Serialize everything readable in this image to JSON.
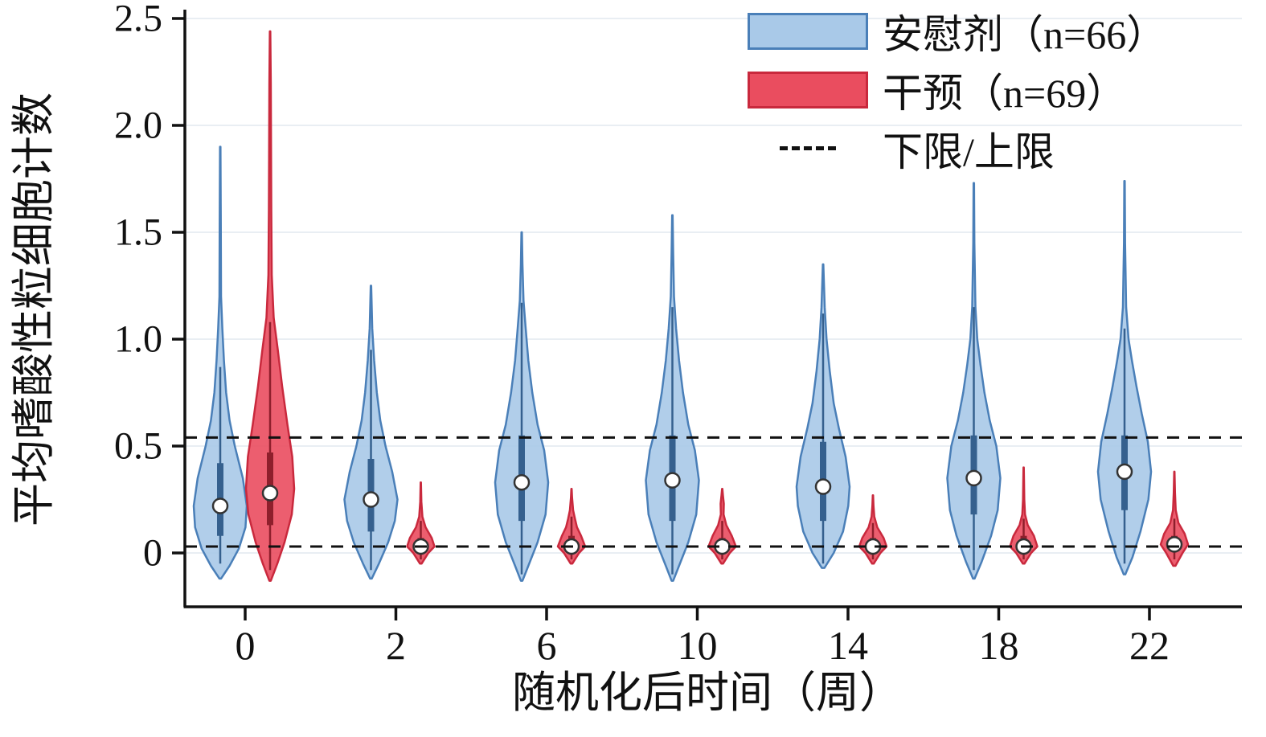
{
  "legend": {
    "items": [
      {
        "label": "安慰剂（n=66）",
        "swatch": "blue-box"
      },
      {
        "label": "干预（n=69）",
        "swatch": "red-box"
      },
      {
        "label": "下限/上限",
        "swatch": "dashed-line"
      }
    ]
  },
  "colors": {
    "placebo_fill": "#a9c9e8",
    "placebo_stroke": "#4a7fb8",
    "placebo_box": "#35608e",
    "intervention_fill": "#ea4d5f",
    "intervention_stroke": "#c9293d",
    "intervention_box": "#8e1f2c",
    "reference_line": "#111111",
    "gridline": "#e9eef3",
    "axis": "#111111",
    "median_fill": "#ffffff",
    "median_stroke": "#333333"
  },
  "chart_data": {
    "type": "violin",
    "title": "",
    "xlabel": "随机化后时间（周）",
    "ylabel": "平均嗜酸性粒细胞计数",
    "x_categories": [
      "0",
      "2",
      "6",
      "10",
      "14",
      "18",
      "22"
    ],
    "y_ticks": [
      "0",
      "0.5",
      "1.0",
      "1.5",
      "2.0",
      "2.5"
    ],
    "y_tick_values": [
      0,
      0.5,
      1.0,
      1.5,
      2.0,
      2.5
    ],
    "ylim": [
      -0.28,
      2.55
    ],
    "reference_lines": [
      0.54,
      0.03
    ],
    "series": [
      {
        "name": "安慰剂",
        "n": 66,
        "color": "#a9c9e8"
      },
      {
        "name": "干预",
        "n": 69,
        "color": "#ea4d5f"
      }
    ],
    "violins": [
      {
        "week": "0",
        "group": "placebo",
        "median": 0.22,
        "q1": 0.08,
        "q3": 0.42,
        "whisker_low": -0.05,
        "whisker_high": 0.87,
        "shape": [
          [
            -0.12,
            0.03
          ],
          [
            -0.06,
            0.35
          ],
          [
            0.02,
            0.7
          ],
          [
            0.12,
            0.95
          ],
          [
            0.22,
            1.0
          ],
          [
            0.35,
            0.85
          ],
          [
            0.5,
            0.55
          ],
          [
            0.62,
            0.35
          ],
          [
            0.75,
            0.22
          ],
          [
            0.9,
            0.14
          ],
          [
            1.05,
            0.08
          ],
          [
            1.2,
            0.03
          ],
          [
            1.55,
            0.02
          ],
          [
            1.9,
            0.01
          ]
        ]
      },
      {
        "week": "0",
        "group": "intervention",
        "median": 0.28,
        "q1": 0.13,
        "q3": 0.47,
        "whisker_low": -0.08,
        "whisker_high": 1.08,
        "shape": [
          [
            -0.13,
            0.03
          ],
          [
            -0.05,
            0.3
          ],
          [
            0.05,
            0.6
          ],
          [
            0.18,
            0.9
          ],
          [
            0.3,
            1.0
          ],
          [
            0.45,
            0.92
          ],
          [
            0.6,
            0.72
          ],
          [
            0.78,
            0.5
          ],
          [
            0.95,
            0.32
          ],
          [
            1.1,
            0.15
          ],
          [
            1.3,
            0.07
          ],
          [
            1.6,
            0.05
          ],
          [
            1.9,
            0.04
          ],
          [
            2.2,
            0.03
          ],
          [
            2.44,
            0.01
          ]
        ]
      },
      {
        "week": "2",
        "group": "placebo",
        "median": 0.25,
        "q1": 0.1,
        "q3": 0.44,
        "whisker_low": -0.08,
        "whisker_high": 0.95,
        "shape": [
          [
            -0.12,
            0.03
          ],
          [
            -0.05,
            0.3
          ],
          [
            0.05,
            0.65
          ],
          [
            0.15,
            0.9
          ],
          [
            0.25,
            1.0
          ],
          [
            0.38,
            0.8
          ],
          [
            0.5,
            0.55
          ],
          [
            0.62,
            0.35
          ],
          [
            0.75,
            0.22
          ],
          [
            0.9,
            0.12
          ],
          [
            1.05,
            0.05
          ],
          [
            1.25,
            0.01
          ]
        ]
      },
      {
        "week": "2",
        "group": "intervention",
        "median": 0.03,
        "q1": 0.01,
        "q3": 0.07,
        "whisker_low": -0.03,
        "whisker_high": 0.15,
        "shape": [
          [
            -0.05,
            0.06
          ],
          [
            0.0,
            0.55
          ],
          [
            0.03,
            1.0
          ],
          [
            0.07,
            0.8
          ],
          [
            0.12,
            0.35
          ],
          [
            0.17,
            0.12
          ],
          [
            0.24,
            0.04
          ],
          [
            0.33,
            0.01
          ]
        ]
      },
      {
        "week": "6",
        "group": "placebo",
        "median": 0.33,
        "q1": 0.15,
        "q3": 0.55,
        "whisker_low": -0.1,
        "whisker_high": 1.17,
        "shape": [
          [
            -0.13,
            0.03
          ],
          [
            -0.06,
            0.25
          ],
          [
            0.05,
            0.6
          ],
          [
            0.18,
            0.9
          ],
          [
            0.33,
            1.0
          ],
          [
            0.48,
            0.85
          ],
          [
            0.6,
            0.6
          ],
          [
            0.75,
            0.4
          ],
          [
            0.9,
            0.25
          ],
          [
            1.05,
            0.15
          ],
          [
            1.18,
            0.07
          ],
          [
            1.35,
            0.03
          ],
          [
            1.5,
            0.01
          ]
        ]
      },
      {
        "week": "6",
        "group": "intervention",
        "median": 0.03,
        "q1": 0.01,
        "q3": 0.08,
        "whisker_low": -0.03,
        "whisker_high": 0.17,
        "shape": [
          [
            -0.05,
            0.06
          ],
          [
            0.0,
            0.55
          ],
          [
            0.03,
            1.0
          ],
          [
            0.08,
            0.7
          ],
          [
            0.12,
            0.4
          ],
          [
            0.16,
            0.25
          ],
          [
            0.2,
            0.12
          ],
          [
            0.26,
            0.04
          ],
          [
            0.3,
            0.01
          ]
        ]
      },
      {
        "week": "10",
        "group": "placebo",
        "median": 0.34,
        "q1": 0.15,
        "q3": 0.55,
        "whisker_low": -0.1,
        "whisker_high": 1.15,
        "shape": [
          [
            -0.13,
            0.03
          ],
          [
            -0.06,
            0.25
          ],
          [
            0.05,
            0.6
          ],
          [
            0.18,
            0.9
          ],
          [
            0.34,
            1.0
          ],
          [
            0.48,
            0.85
          ],
          [
            0.6,
            0.6
          ],
          [
            0.75,
            0.4
          ],
          [
            0.9,
            0.25
          ],
          [
            1.05,
            0.14
          ],
          [
            1.2,
            0.06
          ],
          [
            1.4,
            0.03
          ],
          [
            1.58,
            0.01
          ]
        ]
      },
      {
        "week": "10",
        "group": "intervention",
        "median": 0.03,
        "q1": 0.01,
        "q3": 0.07,
        "whisker_low": -0.03,
        "whisker_high": 0.15,
        "shape": [
          [
            -0.05,
            0.06
          ],
          [
            0.0,
            0.55
          ],
          [
            0.03,
            1.0
          ],
          [
            0.08,
            0.7
          ],
          [
            0.13,
            0.3
          ],
          [
            0.18,
            0.1
          ],
          [
            0.23,
            0.12
          ],
          [
            0.27,
            0.05
          ],
          [
            0.3,
            0.01
          ]
        ]
      },
      {
        "week": "14",
        "group": "placebo",
        "median": 0.31,
        "q1": 0.15,
        "q3": 0.52,
        "whisker_low": -0.05,
        "whisker_high": 1.12,
        "shape": [
          [
            -0.07,
            0.05
          ],
          [
            0.0,
            0.4
          ],
          [
            0.1,
            0.75
          ],
          [
            0.22,
            0.95
          ],
          [
            0.31,
            1.0
          ],
          [
            0.45,
            0.85
          ],
          [
            0.58,
            0.6
          ],
          [
            0.7,
            0.4
          ],
          [
            0.85,
            0.25
          ],
          [
            1.0,
            0.13
          ],
          [
            1.15,
            0.06
          ],
          [
            1.35,
            0.01
          ]
        ]
      },
      {
        "week": "14",
        "group": "intervention",
        "median": 0.03,
        "q1": 0.01,
        "q3": 0.07,
        "whisker_low": -0.03,
        "whisker_high": 0.14,
        "shape": [
          [
            -0.05,
            0.06
          ],
          [
            0.0,
            0.55
          ],
          [
            0.03,
            1.0
          ],
          [
            0.07,
            0.78
          ],
          [
            0.12,
            0.32
          ],
          [
            0.17,
            0.1
          ],
          [
            0.22,
            0.04
          ],
          [
            0.27,
            0.01
          ]
        ]
      },
      {
        "week": "18",
        "group": "placebo",
        "median": 0.35,
        "q1": 0.18,
        "q3": 0.55,
        "whisker_low": -0.08,
        "whisker_high": 1.15,
        "shape": [
          [
            -0.12,
            0.03
          ],
          [
            -0.04,
            0.3
          ],
          [
            0.08,
            0.65
          ],
          [
            0.2,
            0.9
          ],
          [
            0.35,
            1.0
          ],
          [
            0.5,
            0.85
          ],
          [
            0.62,
            0.6
          ],
          [
            0.75,
            0.4
          ],
          [
            0.88,
            0.25
          ],
          [
            1.0,
            0.13
          ],
          [
            1.15,
            0.06
          ],
          [
            1.45,
            0.02
          ],
          [
            1.73,
            0.01
          ]
        ]
      },
      {
        "week": "18",
        "group": "intervention",
        "median": 0.03,
        "q1": 0.01,
        "q3": 0.08,
        "whisker_low": -0.03,
        "whisker_high": 0.16,
        "shape": [
          [
            -0.05,
            0.06
          ],
          [
            0.0,
            0.55
          ],
          [
            0.03,
            1.0
          ],
          [
            0.08,
            0.75
          ],
          [
            0.13,
            0.3
          ],
          [
            0.18,
            0.1
          ],
          [
            0.25,
            0.05
          ],
          [
            0.33,
            0.03
          ],
          [
            0.4,
            0.01
          ]
        ]
      },
      {
        "week": "22",
        "group": "placebo",
        "median": 0.38,
        "q1": 0.2,
        "q3": 0.55,
        "whisker_low": -0.05,
        "whisker_high": 1.05,
        "shape": [
          [
            -0.1,
            0.03
          ],
          [
            -0.02,
            0.3
          ],
          [
            0.1,
            0.6
          ],
          [
            0.25,
            0.9
          ],
          [
            0.38,
            1.0
          ],
          [
            0.52,
            0.88
          ],
          [
            0.65,
            0.65
          ],
          [
            0.78,
            0.45
          ],
          [
            0.9,
            0.28
          ],
          [
            1.0,
            0.15
          ],
          [
            1.15,
            0.06
          ],
          [
            1.45,
            0.02
          ],
          [
            1.74,
            0.01
          ]
        ]
      },
      {
        "week": "22",
        "group": "intervention",
        "median": 0.04,
        "q1": 0.01,
        "q3": 0.08,
        "whisker_low": -0.03,
        "whisker_high": 0.16,
        "shape": [
          [
            -0.06,
            0.08
          ],
          [
            0.0,
            0.6
          ],
          [
            0.04,
            1.0
          ],
          [
            0.09,
            0.75
          ],
          [
            0.14,
            0.3
          ],
          [
            0.2,
            0.1
          ],
          [
            0.28,
            0.05
          ],
          [
            0.38,
            0.01
          ]
        ]
      }
    ]
  }
}
